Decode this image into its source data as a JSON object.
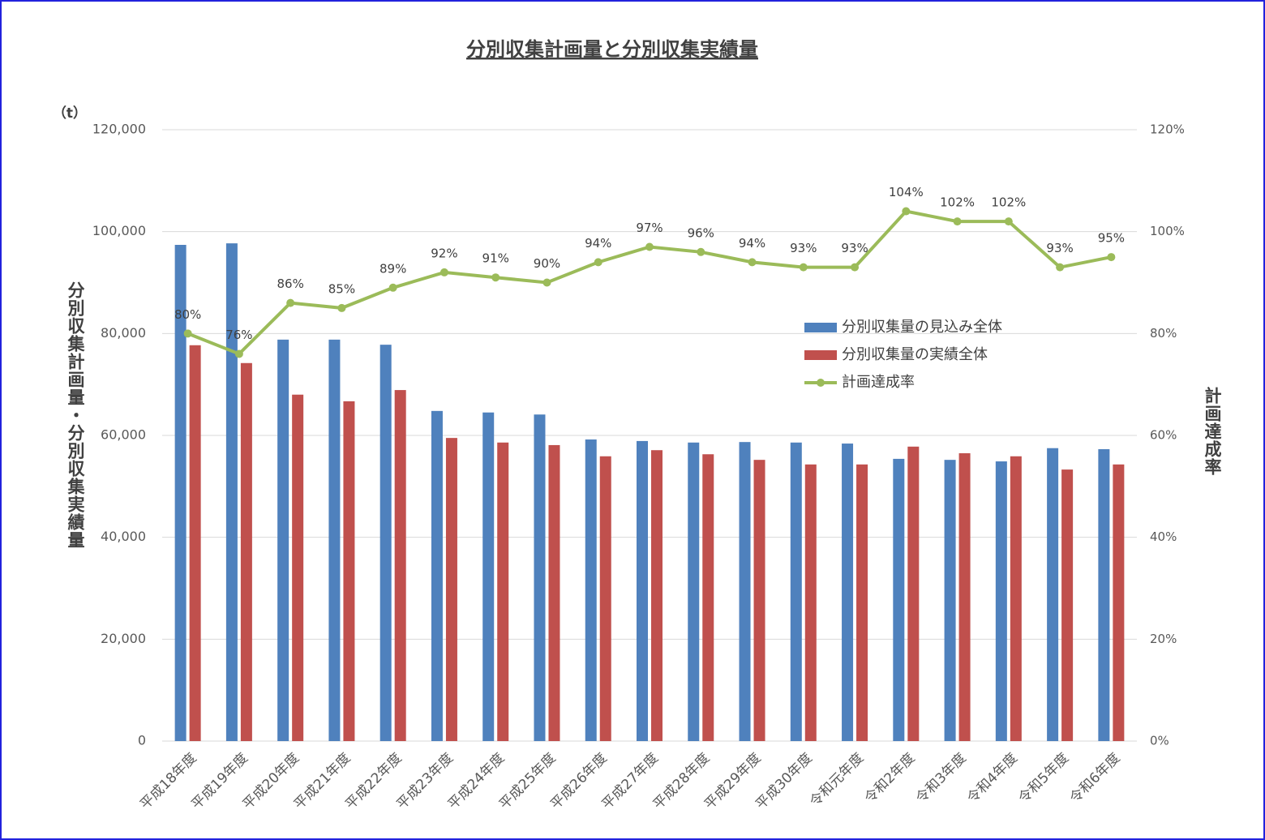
{
  "chart_data": {
    "type": "bar",
    "title": "分別収集計画量と分別収集実績量",
    "unit": "（t）",
    "y_label": "分別収集計画量・分別収集実績量",
    "y2_label": "計画達成率",
    "categories": [
      "平成18年度",
      "平成19年度",
      "平成20年度",
      "平成21年度",
      "平成22年度",
      "平成23年度",
      "平成24年度",
      "平成25年度",
      "平成26年度",
      "平成27年度",
      "平成28年度",
      "平成29年度",
      "平成30年度",
      "令和元年度",
      "令和2年度",
      "令和3年度",
      "令和4年度",
      "令和5年度",
      "令和6年度"
    ],
    "series": [
      {
        "name": "分別収集量の見込み全体",
        "type": "bar",
        "color": "#4f81bd",
        "values": [
          97400,
          97700,
          78800,
          78800,
          77800,
          64800,
          64500,
          64100,
          59200,
          58900,
          58600,
          58700,
          58600,
          58400,
          55400,
          55200,
          54900,
          57500,
          57300
        ]
      },
      {
        "name": "分別収集量の実績全体",
        "type": "bar",
        "color": "#c0504d",
        "values": [
          77700,
          74200,
          68000,
          66700,
          68900,
          59500,
          58600,
          58100,
          55900,
          57100,
          56300,
          55200,
          54300,
          54300,
          57800,
          56500,
          55900,
          53300,
          54300
        ]
      },
      {
        "name": "計画達成率",
        "type": "line",
        "axis": "y2",
        "color": "#9bbb59",
        "values": [
          80,
          76,
          86,
          85,
          89,
          92,
          91,
          90,
          94,
          97,
          96,
          94,
          93,
          93,
          104,
          102,
          102,
          93,
          95
        ],
        "value_labels": [
          "80%",
          "76%",
          "86%",
          "85%",
          "89%",
          "92%",
          "91%",
          "90%",
          "94%",
          "97%",
          "96%",
          "94%",
          "93%",
          "93%",
          "104%",
          "102%",
          "102%",
          "93%",
          "95%"
        ]
      }
    ],
    "ylim": [
      0,
      120000
    ],
    "yticks": [
      0,
      {
        "value": 20000,
        "label": "20,000"
      },
      {
        "value": 40000,
        "label": "40,000"
      },
      {
        "value": 60000,
        "label": "60,000"
      },
      {
        "value": 80000,
        "label": "80,000"
      },
      {
        "value": 100000,
        "label": "100,000"
      },
      {
        "value": 120000,
        "label": "120,000"
      }
    ],
    "y2lim": [
      0,
      120
    ],
    "y2ticks": [
      {
        "value": 0,
        "label": "0%"
      },
      {
        "value": 20,
        "label": "20%"
      },
      {
        "value": 40,
        "label": "40%"
      },
      {
        "value": 60,
        "label": "60%"
      },
      {
        "value": 80,
        "label": "80%"
      },
      {
        "value": 100,
        "label": "100%"
      },
      {
        "value": 120,
        "label": "120%"
      }
    ],
    "grid": true
  }
}
